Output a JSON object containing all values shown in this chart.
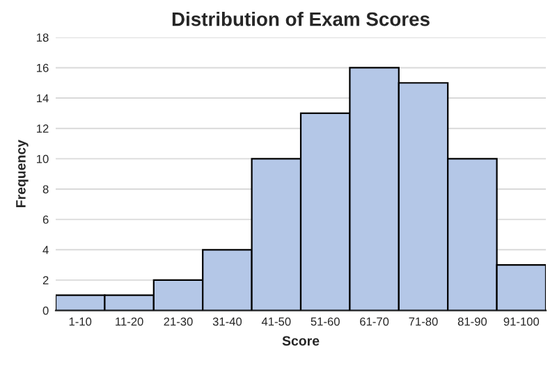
{
  "chart_data": {
    "type": "bar",
    "title": "Distribution of Exam Scores",
    "xlabel": "Score",
    "ylabel": "Frequency",
    "categories": [
      "1-10",
      "11-20",
      "21-30",
      "31-40",
      "41-50",
      "51-60",
      "61-70",
      "71-80",
      "81-90",
      "91-100"
    ],
    "values": [
      1,
      1,
      2,
      4,
      10,
      13,
      16,
      15,
      10,
      3
    ],
    "color": "#b4c7e7",
    "ylim": [
      0,
      18
    ],
    "yticks": [
      0,
      2,
      4,
      6,
      8,
      10,
      12,
      14,
      16,
      18
    ],
    "grid": "y",
    "legend": false
  }
}
